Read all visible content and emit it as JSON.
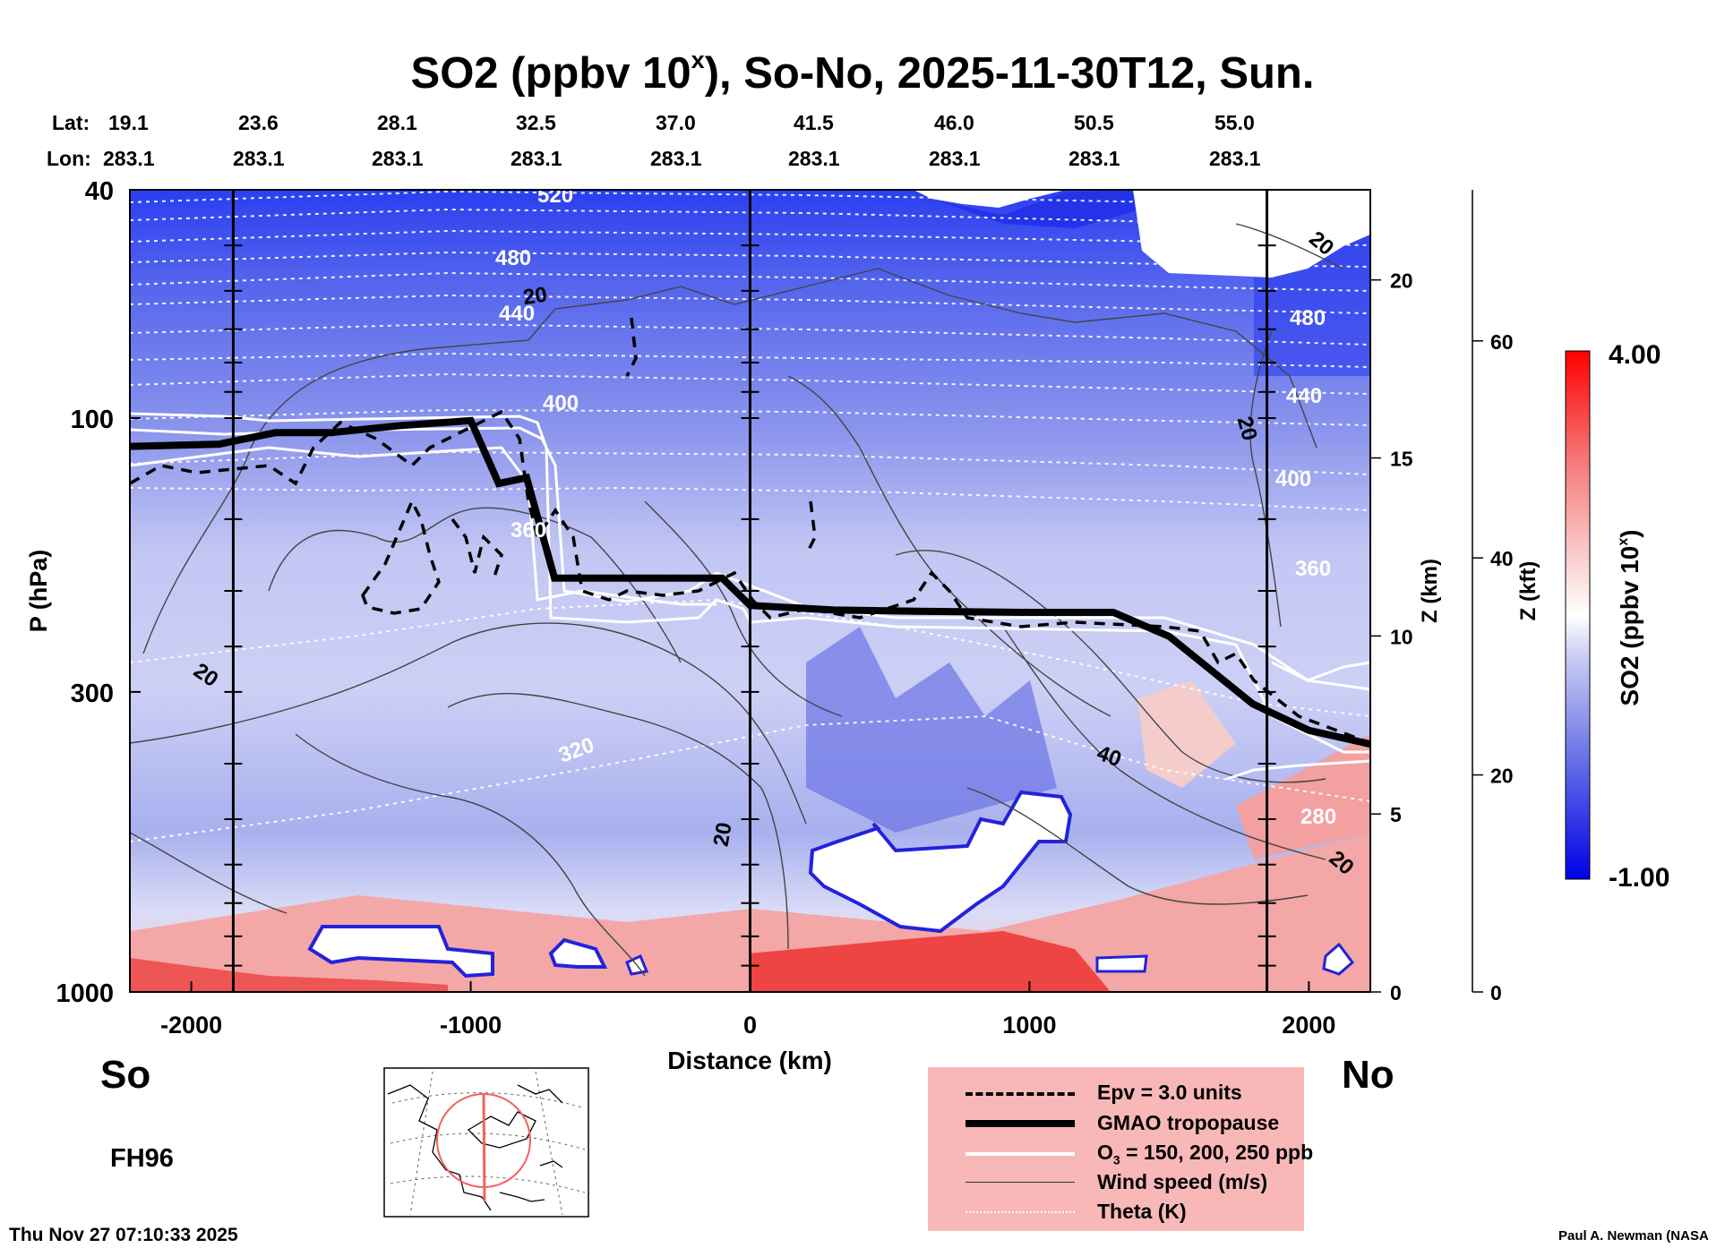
{
  "header": {
    "title_main": "SO2 (ppbv 10",
    "title_sup": "x",
    "title_rest": "), So-No, 2025-11-30T12, Sun."
  },
  "cross_section": {
    "lat_label": "Lat:",
    "lon_label": "Lon:",
    "lat_values": [
      "19.1",
      "23.6",
      "28.1",
      "32.5",
      "37.0",
      "41.5",
      "46.0",
      "50.5",
      "55.0"
    ],
    "lon_values": [
      "283.1",
      "283.1",
      "283.1",
      "283.1",
      "283.1",
      "283.1",
      "283.1",
      "283.1",
      "283.1"
    ]
  },
  "panel": {
    "south_label": "So",
    "north_label": "No",
    "forecast_label": "FH96",
    "timestamp": "Thu Nov 27 07:10:33 2025",
    "credit": "Paul A. Newman (NASA"
  },
  "colorbar": {
    "label_main": "SO2 (ppbv 10",
    "label_sup": "x",
    "label_rest": ")",
    "max_label": "4.00",
    "min_label": "-1.00",
    "min": -1.0,
    "max": 4.0,
    "colors": {
      "low": "#0000e8",
      "mid": "#ffffff",
      "high": "#ff0000"
    }
  },
  "legend": {
    "items": [
      {
        "label": "Epv = 3.0 units",
        "style": "dashed-black"
      },
      {
        "label": "GMAO tropopause",
        "style": "thick-black"
      },
      {
        "label": "O",
        "sub": "3",
        "rest": " = 150, 200, 250 ppb",
        "style": "white"
      },
      {
        "label": "Wind speed (m/s)",
        "style": "thin-gray"
      },
      {
        "label": "Theta (K)",
        "style": "dotted-white"
      }
    ],
    "background": "#f9b8b8"
  },
  "chart_data": {
    "type": "heatmap",
    "title": "SO2 (ppbv 10^x), So-No, 2025-11-30T12, Sun.",
    "xlabel": "Distance (km)",
    "ylabel": "P (hPa)",
    "xlim": [
      -2220,
      2220
    ],
    "ylim": [
      1000,
      40
    ],
    "y_scale": "log",
    "x_ticks": [
      -2000,
      -1000,
      0,
      1000,
      2000
    ],
    "y_ticks": [
      40,
      100,
      300,
      1000
    ],
    "z_km_ticks": [
      0,
      5,
      10,
      15,
      20
    ],
    "z_km_label": "Z (km)",
    "z_kft_ticks": [
      0,
      20,
      40,
      60
    ],
    "z_kft_label": "Z (kft)",
    "marker_distances_km": [
      -1850,
      0,
      1850
    ],
    "tropopause": [
      {
        "x": -2220,
        "p": 112
      },
      {
        "x": -1900,
        "p": 111
      },
      {
        "x": -1700,
        "p": 106
      },
      {
        "x": -1500,
        "p": 106
      },
      {
        "x": -1250,
        "p": 103
      },
      {
        "x": -1000,
        "p": 101
      },
      {
        "x": -900,
        "p": 130
      },
      {
        "x": -800,
        "p": 127
      },
      {
        "x": -700,
        "p": 190
      },
      {
        "x": -400,
        "p": 190
      },
      {
        "x": -100,
        "p": 190
      },
      {
        "x": 0,
        "p": 212
      },
      {
        "x": 300,
        "p": 216
      },
      {
        "x": 600,
        "p": 217
      },
      {
        "x": 1000,
        "p": 218
      },
      {
        "x": 1300,
        "p": 218
      },
      {
        "x": 1500,
        "p": 240
      },
      {
        "x": 1800,
        "p": 315
      },
      {
        "x": 2000,
        "p": 350
      },
      {
        "x": 2220,
        "p": 370
      }
    ],
    "theta_contours_K": [
      280,
      320,
      360,
      400,
      440,
      480,
      520
    ],
    "wind_contours_ms": [
      20,
      40
    ],
    "colorbar_range": [
      -1.0,
      4.0
    ],
    "units": "ppbv 10^x"
  }
}
